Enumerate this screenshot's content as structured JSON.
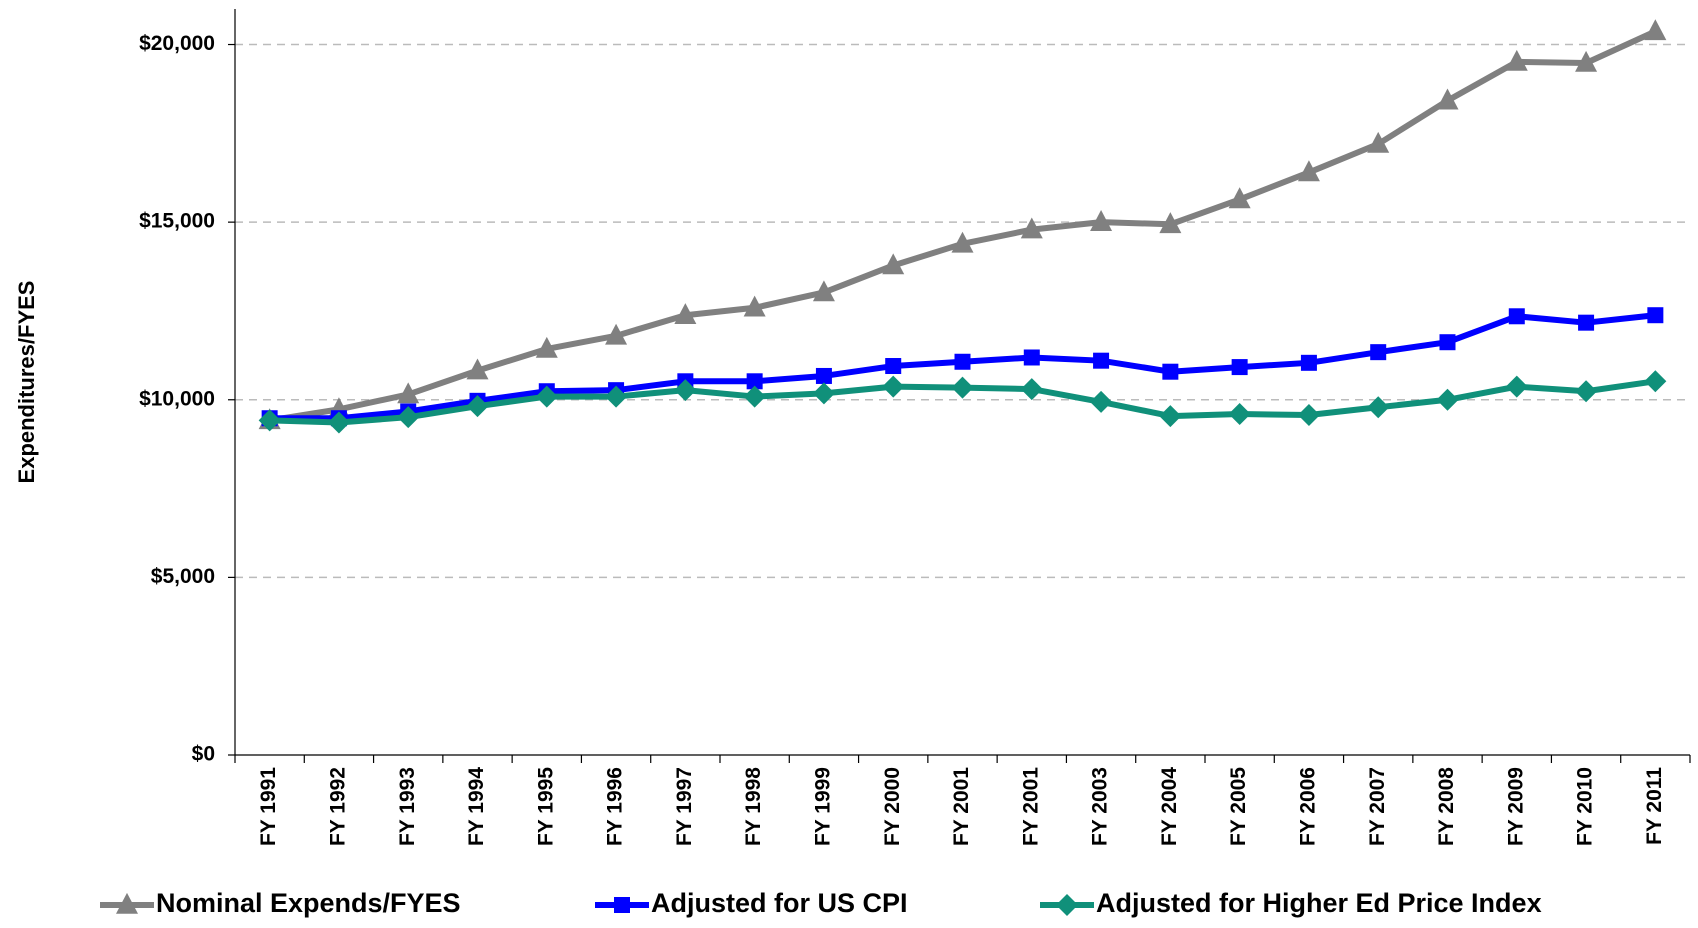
{
  "chart_data": {
    "type": "line",
    "y_label": "Expenditures/FYES",
    "categories": [
      "FY 1991",
      "FY 1992",
      "FY 1993",
      "FY 1994",
      "FY 1995",
      "FY 1996",
      "FY 1997",
      "FY 1998",
      "FY 1999",
      "FY 2000",
      "FY 2001",
      "FY 2001",
      "FY 2003",
      "FY 2004",
      "FY 2005",
      "FY 2006",
      "FY 2007",
      "FY 2008",
      "FY 2009",
      "FY 2010",
      "FY 2011"
    ],
    "series": [
      {
        "name": "Nominal Expends/FYES",
        "color": "#808080",
        "marker": "triangle",
        "values": [
          9420,
          9730,
          10150,
          10820,
          11430,
          11800,
          12380,
          12590,
          13020,
          13780,
          14390,
          14790,
          15000,
          14940,
          15640,
          16400,
          17200,
          18420,
          19510,
          19480,
          20370
        ]
      },
      {
        "name": "Adjusted for US CPI",
        "color": "#0000ff",
        "marker": "square",
        "values": [
          9480,
          9480,
          9670,
          9970,
          10240,
          10270,
          10520,
          10520,
          10670,
          10950,
          11070,
          11190,
          11100,
          10790,
          10920,
          11040,
          11340,
          11620,
          12350,
          12170,
          12380
        ]
      },
      {
        "name": "Adjusted for Higher Ed Price Index",
        "color": "#10907a",
        "marker": "diamond",
        "values": [
          9420,
          9360,
          9510,
          9820,
          10090,
          10090,
          10270,
          10090,
          10180,
          10370,
          10340,
          10300,
          9940,
          9540,
          9600,
          9570,
          9790,
          10000,
          10370,
          10240,
          10520
        ]
      }
    ],
    "ylim": [
      0,
      21000
    ],
    "yticks": [
      {
        "value": 0,
        "label": "$0"
      },
      {
        "value": 5000,
        "label": "$5,000"
      },
      {
        "value": 10000,
        "label": "$10,000"
      },
      {
        "value": 15000,
        "label": "$15,000"
      },
      {
        "value": 20000,
        "label": "$20,000"
      }
    ],
    "grid": true,
    "legend": "bottom"
  }
}
